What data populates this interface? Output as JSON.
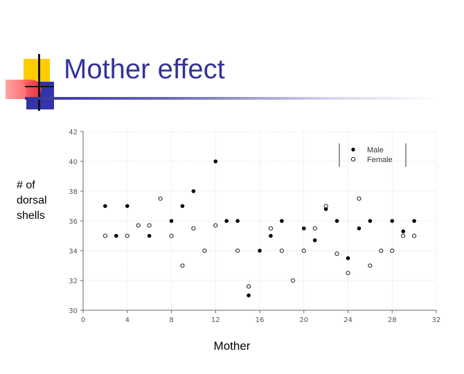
{
  "slide": {
    "title": "Mother effect"
  },
  "chart_data": {
    "type": "scatter",
    "xlabel": "Mother",
    "ylabel": "# of dorsal shells",
    "xlim": [
      0,
      32
    ],
    "ylim": [
      30,
      42
    ],
    "xticks": [
      0,
      4,
      8,
      12,
      16,
      20,
      24,
      28,
      32
    ],
    "yticks": [
      30,
      32,
      34,
      36,
      38,
      40,
      42
    ],
    "grid": true,
    "legend_position": "top-right",
    "series": [
      {
        "name": "Male",
        "marker": "filled-circle",
        "color": "#000000",
        "points": [
          [
            2,
            37
          ],
          [
            3,
            35
          ],
          [
            4,
            37
          ],
          [
            6,
            35
          ],
          [
            8,
            36
          ],
          [
            9,
            37
          ],
          [
            10,
            38
          ],
          [
            12,
            40
          ],
          [
            13,
            36
          ],
          [
            14,
            36
          ],
          [
            15,
            31
          ],
          [
            16,
            34
          ],
          [
            17,
            35
          ],
          [
            18,
            36
          ],
          [
            20,
            35.5
          ],
          [
            21,
            34.7
          ],
          [
            22,
            36.8
          ],
          [
            23,
            36
          ],
          [
            24,
            33.5
          ],
          [
            25,
            35.5
          ],
          [
            26,
            36
          ],
          [
            28,
            36
          ],
          [
            29,
            35.3
          ],
          [
            30,
            36
          ]
        ]
      },
      {
        "name": "Female",
        "marker": "open-circle",
        "color": "#000000",
        "points": [
          [
            2,
            35
          ],
          [
            4,
            35
          ],
          [
            5,
            35.7
          ],
          [
            6,
            35.7
          ],
          [
            7,
            37.5
          ],
          [
            8,
            35
          ],
          [
            9,
            33
          ],
          [
            10,
            35.5
          ],
          [
            11,
            34
          ],
          [
            12,
            35.7
          ],
          [
            14,
            34
          ],
          [
            15,
            31.6
          ],
          [
            17,
            35.5
          ],
          [
            18,
            34
          ],
          [
            19,
            32
          ],
          [
            20,
            34
          ],
          [
            21,
            35.5
          ],
          [
            22,
            37
          ],
          [
            23,
            33.8
          ],
          [
            24,
            32.5
          ],
          [
            25,
            37.5
          ],
          [
            26,
            33
          ],
          [
            27,
            34
          ],
          [
            28,
            34
          ],
          [
            29,
            35
          ],
          [
            30,
            35
          ]
        ]
      }
    ]
  }
}
